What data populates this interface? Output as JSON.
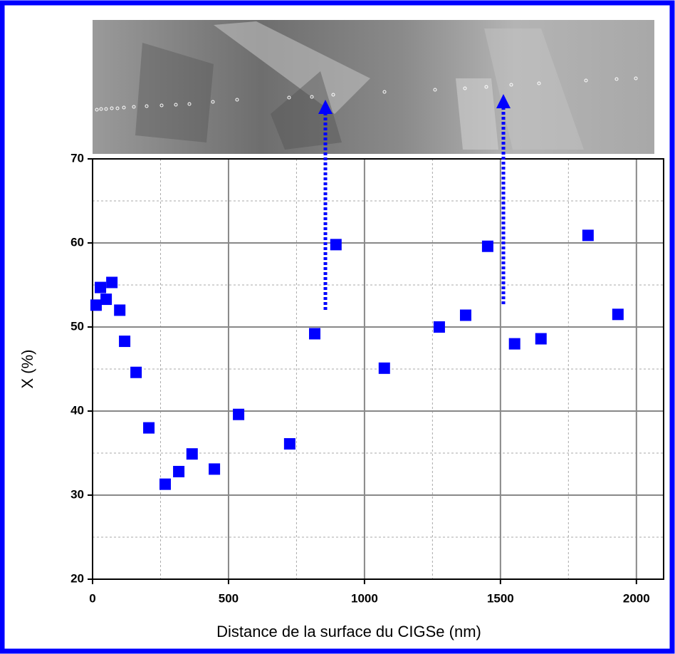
{
  "chart_data": {
    "type": "scatter",
    "x_label": "Distance de la surface du CIGSe (nm)",
    "y_label": "X (%)",
    "xlim": [
      0,
      2100
    ],
    "ylim": [
      20,
      70
    ],
    "xticks": [
      0,
      500,
      1000,
      1500,
      2000
    ],
    "yticks": [
      20,
      30,
      40,
      50,
      60,
      70
    ],
    "xminor": [
      250,
      750,
      1250,
      1750
    ],
    "yminor": [
      25,
      35,
      45,
      55,
      65
    ],
    "grid": true,
    "series": [
      {
        "color": "#0000ff",
        "x": [
          13,
          29,
          50,
          71,
          100,
          118,
          160,
          207,
          267,
          317,
          366,
          448,
          537,
          725,
          817,
          895,
          1073,
          1275,
          1372,
          1453,
          1552,
          1649,
          1822,
          1932
        ],
        "values": [
          52.6,
          54.7,
          53.3,
          55.3,
          52.0,
          48.3,
          44.6,
          38.0,
          31.3,
          32.8,
          34.9,
          33.1,
          39.6,
          36.1,
          49.2,
          59.8,
          45.1,
          50.0,
          51.4,
          59.6,
          48.0,
          48.6,
          60.9,
          51.5
        ]
      }
    ]
  }
}
